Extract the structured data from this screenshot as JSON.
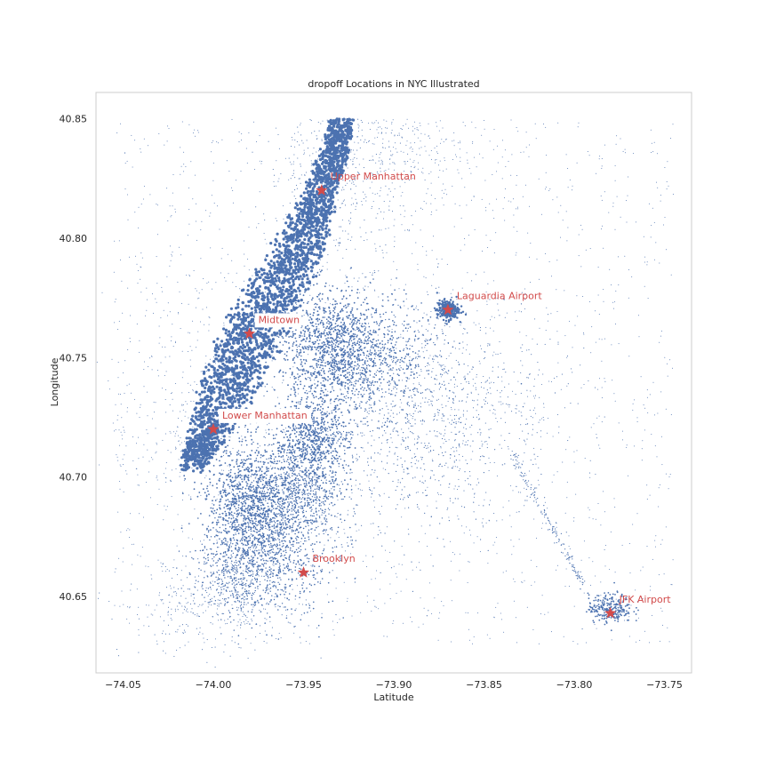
{
  "chart_data": {
    "type": "scatter",
    "title": "dropoff Locations in NYC Illustrated",
    "xlabel": "Latitude",
    "ylabel": "Longitude",
    "xlim": [
      -74.065,
      -73.735
    ],
    "ylim": [
      40.618,
      40.861
    ],
    "xticks": [
      -74.05,
      -74.0,
      -73.95,
      -73.9,
      -73.85,
      -73.8,
      -73.75
    ],
    "xtick_labels": [
      "−74.05",
      "−74.00",
      "−73.95",
      "−73.90",
      "−73.85",
      "−73.80",
      "−73.75"
    ],
    "yticks": [
      40.65,
      40.7,
      40.75,
      40.8,
      40.85
    ],
    "ytick_labels": [
      "40.65",
      "40.70",
      "40.75",
      "40.80",
      "40.85"
    ],
    "grid": false,
    "colors": {
      "points": "#4c72b0",
      "landmark": "#d24b4b",
      "frame": "#cccccc",
      "text": "#262626"
    },
    "series": [
      {
        "description_values_sampled": true,
        "x": [
          -73.98,
          -73.975,
          -73.97,
          -73.985,
          -73.99,
          -73.995,
          -74.0,
          -74.005,
          -74.01,
          -73.965,
          -73.96,
          -73.955,
          -73.95,
          -73.945,
          -73.94,
          -73.935,
          -73.93,
          -73.92,
          -73.91,
          -73.9,
          -73.89,
          -73.88,
          -73.87,
          -73.86,
          -73.85,
          -73.84,
          -73.82,
          -73.8,
          -73.79,
          -73.78
        ],
        "y": [
          40.76,
          40.755,
          40.765,
          40.75,
          40.74,
          40.73,
          40.72,
          40.71,
          40.705,
          40.775,
          40.785,
          40.795,
          40.805,
          40.815,
          40.825,
          40.835,
          40.76,
          40.75,
          40.74,
          40.745,
          40.735,
          40.74,
          40.77,
          40.76,
          40.72,
          40.7,
          40.68,
          40.66,
          40.65,
          40.645
        ]
      }
    ],
    "landmarks": [
      {
        "name": "Upper Manhattan",
        "x": -73.94,
        "y": 40.82,
        "boxed": false
      },
      {
        "name": "Laguardia Airport",
        "x": -73.87,
        "y": 40.77,
        "boxed": false
      },
      {
        "name": "Midtown",
        "x": -73.98,
        "y": 40.76,
        "boxed": true
      },
      {
        "name": "Lower Manhattan",
        "x": -74.0,
        "y": 40.72,
        "boxed": true
      },
      {
        "name": "Brooklyn",
        "x": -73.95,
        "y": 40.66,
        "boxed": false
      },
      {
        "name": "JFK Airport",
        "x": -73.78,
        "y": 40.643,
        "boxed": false
      }
    ]
  }
}
